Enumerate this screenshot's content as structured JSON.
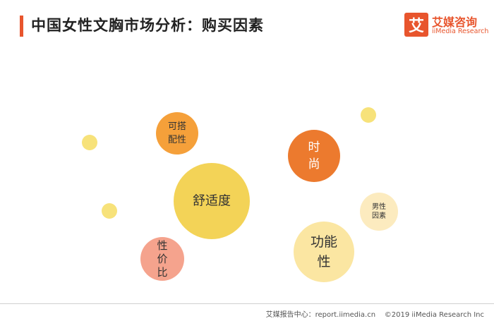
{
  "header": {
    "title": "中国女性文胸市场分析：购买因素"
  },
  "logo": {
    "mark": "艾",
    "name_cn": "艾媒咨询",
    "name_en": "iiMedia Research"
  },
  "colors": {
    "accent": "#e8552d",
    "small_dot": "#f7e27a",
    "comfort": "#f3d357",
    "matchable": "#f5a03a",
    "fashion": "#ec7a2e",
    "price": "#f5a38d",
    "function": "#fbe6a2",
    "male": "#fcebbf"
  },
  "chart_data": {
    "type": "bubble",
    "bubbles": [
      {
        "name": "舒适度",
        "lines": [
          "舒适度"
        ],
        "size": 5,
        "color": "#f3d357"
      },
      {
        "name": "功能性",
        "lines": [
          "功能",
          "性"
        ],
        "size": 4,
        "color": "#fbe6a2"
      },
      {
        "name": "时尚",
        "lines": [
          "时",
          "尚"
        ],
        "size": 3.5,
        "color": "#ec7a2e"
      },
      {
        "name": "性价比",
        "lines": [
          "性",
          "价",
          "比"
        ],
        "size": 3,
        "color": "#f5a38d"
      },
      {
        "name": "可搭配性",
        "lines": [
          "可搭",
          "配性"
        ],
        "size": 2.8,
        "color": "#f5a03a"
      },
      {
        "name": "男性因素",
        "lines": [
          "男性",
          "因素"
        ],
        "size": 2.6,
        "color": "#fcebbf"
      },
      {
        "name": "",
        "lines": [],
        "size": 1,
        "color": "#f7e27a"
      },
      {
        "name": "",
        "lines": [],
        "size": 1,
        "color": "#f7e27a"
      },
      {
        "name": "",
        "lines": [],
        "size": 1,
        "color": "#f7e27a"
      }
    ]
  },
  "footer": {
    "source": "艾媒报告中心：report.iimedia.cn",
    "copyright": "©2019  iiMedia Research  Inc"
  }
}
